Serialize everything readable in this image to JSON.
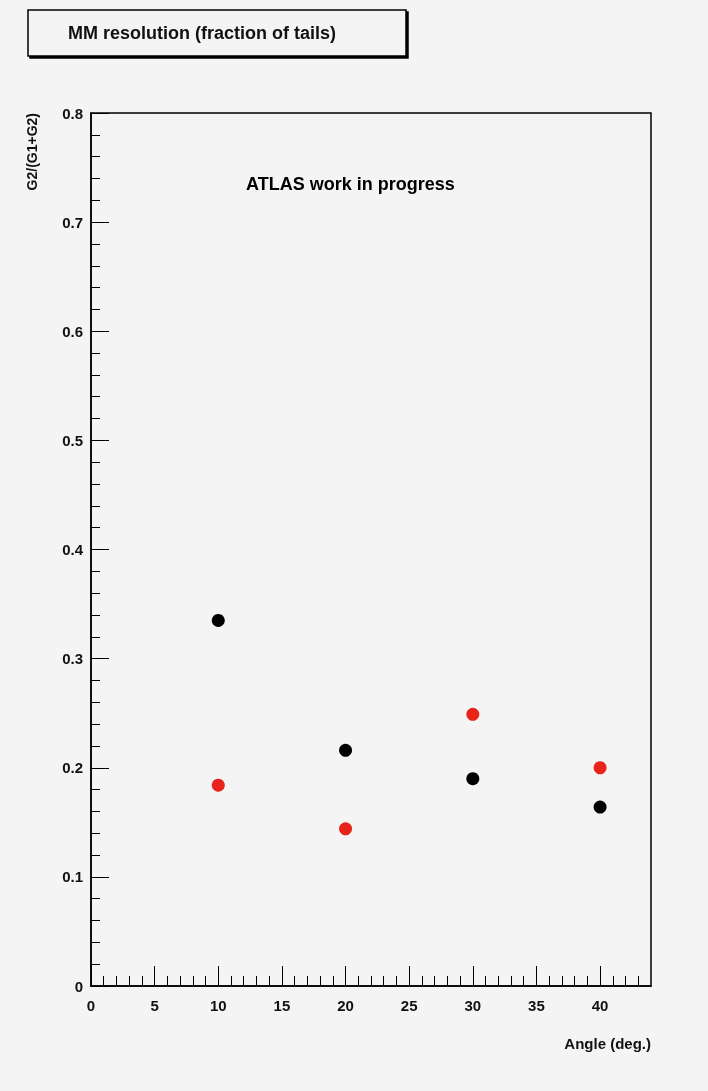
{
  "chart_data": {
    "type": "scatter",
    "title": "MM resolution (fraction of tails)",
    "xlabel": "Angle (deg.)",
    "ylabel": "G2/(G1+G2)",
    "annotations": [
      "ATLAS work in progress"
    ],
    "x": [
      10,
      20,
      30,
      40
    ],
    "series": [
      {
        "color": "#000000",
        "values": [
          0.335,
          0.216,
          0.19,
          0.164
        ]
      },
      {
        "color": "#e8231a",
        "values": [
          0.184,
          0.144,
          0.249,
          0.2
        ]
      }
    ],
    "xlim": [
      0,
      44
    ],
    "xticks": [
      0,
      5,
      10,
      15,
      20,
      25,
      30,
      35,
      40
    ],
    "ylim": [
      0,
      0.8
    ],
    "yticks": [
      0,
      0.1,
      0.2,
      0.3,
      0.4,
      0.5,
      0.6,
      0.7,
      0.8
    ],
    "marker": "circle",
    "grid": false
  }
}
